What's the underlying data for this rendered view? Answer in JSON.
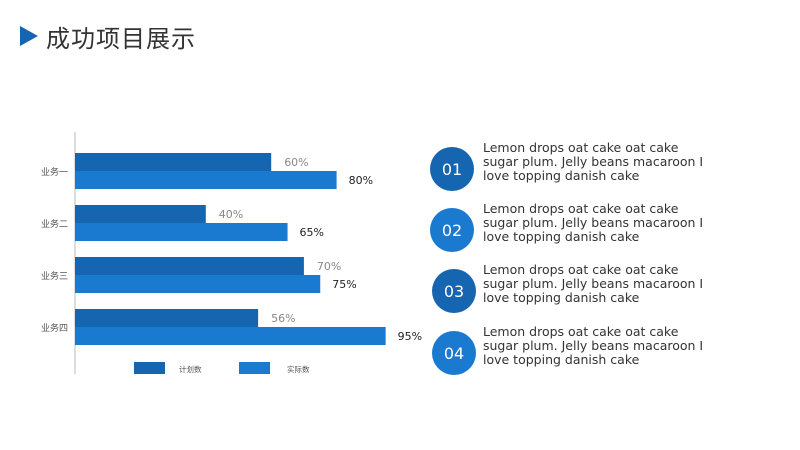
{
  "title": "成功项目展示",
  "colors": {
    "accent": "#1565b0",
    "plan": "#1565b0",
    "actual": "#1a7ad0",
    "badge_dark": "#1565b0",
    "badge_light": "#1a7ad0"
  },
  "chart_data": {
    "type": "bar",
    "orientation": "horizontal",
    "categories": [
      "业务一",
      "业务二",
      "业务三",
      "业务四"
    ],
    "series": [
      {
        "name": "计划数",
        "values": [
          60,
          40,
          70,
          56
        ],
        "labels": [
          "60%",
          "40%",
          "70%",
          "56%"
        ]
      },
      {
        "name": "实际数",
        "values": [
          80,
          65,
          75,
          95
        ],
        "labels": [
          "80%",
          "65%",
          "75%",
          "95%"
        ]
      }
    ],
    "xlim": [
      0,
      100
    ],
    "unit": "%",
    "legend": "bottom",
    "grid": false
  },
  "items": [
    {
      "number": "01",
      "text": "Lemon drops oat cake oat cake sugar plum. Jelly beans macaroon I love topping danish cake"
    },
    {
      "number": "02",
      "text": "Lemon drops oat cake oat cake sugar plum. Jelly beans macaroon I love topping danish cake"
    },
    {
      "number": "03",
      "text": "Lemon drops oat cake oat cake sugar plum. Jelly beans macaroon I love topping danish cake"
    },
    {
      "number": "04",
      "text": "Lemon drops oat cake oat cake sugar plum. Jelly beans macaroon I love topping danish cake"
    }
  ]
}
